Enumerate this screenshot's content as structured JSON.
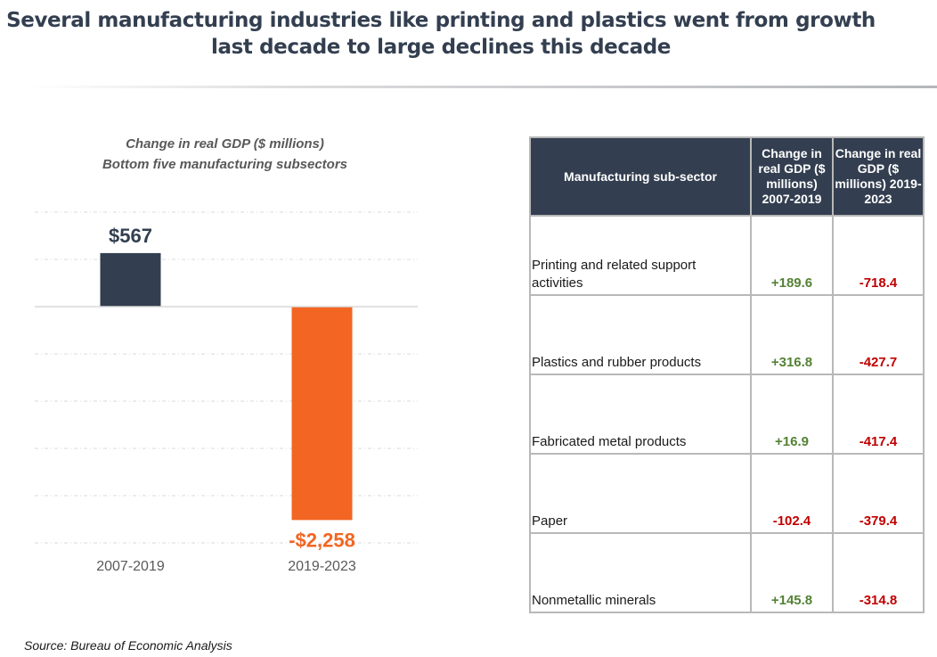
{
  "title": "Several manufacturing industries like printing and plastics went from growth last decade to large declines this decade",
  "colors": {
    "title": "#333f50",
    "bar_positive": "#333f50",
    "bar_negative": "#f26522",
    "positive_text": "#548235",
    "negative_text": "#c00000",
    "header_bg": "#333f50"
  },
  "chart_data": {
    "type": "bar",
    "title": "Change in real GDP ($ millions)",
    "subtitle": "Bottom five manufacturing subsectors",
    "categories": [
      "2007-2019",
      "2019-2023"
    ],
    "values": [
      567,
      -2258
    ],
    "data_labels": [
      "$567",
      "-$2,258"
    ],
    "xlabel": "",
    "ylabel": "",
    "ylim": [
      -2500,
      1000
    ],
    "gridline_step": 500,
    "grid": true,
    "y_tick_labels_visible": false,
    "legend": "none"
  },
  "table": {
    "headers": [
      "Manufacturing sub-sector",
      "Change in real GDP ($ millions) 2007-2019",
      "Change in real GDP ($ millions) 2019-2023"
    ],
    "rows": [
      {
        "sector": "Printing and related support activities",
        "v2007_2019": "+189.6",
        "v2019_2023": "-718.4"
      },
      {
        "sector": "Plastics and rubber products",
        "v2007_2019": "+316.8",
        "v2019_2023": "-427.7"
      },
      {
        "sector": "Fabricated metal products",
        "v2007_2019": "+16.9",
        "v2019_2023": "-417.4"
      },
      {
        "sector": "Paper",
        "v2007_2019": "-102.4",
        "v2019_2023": "-379.4"
      },
      {
        "sector": "Nonmetallic minerals",
        "v2007_2019": "+145.8",
        "v2019_2023": "-314.8"
      }
    ]
  },
  "source": "Source: Bureau of Economic Analysis"
}
